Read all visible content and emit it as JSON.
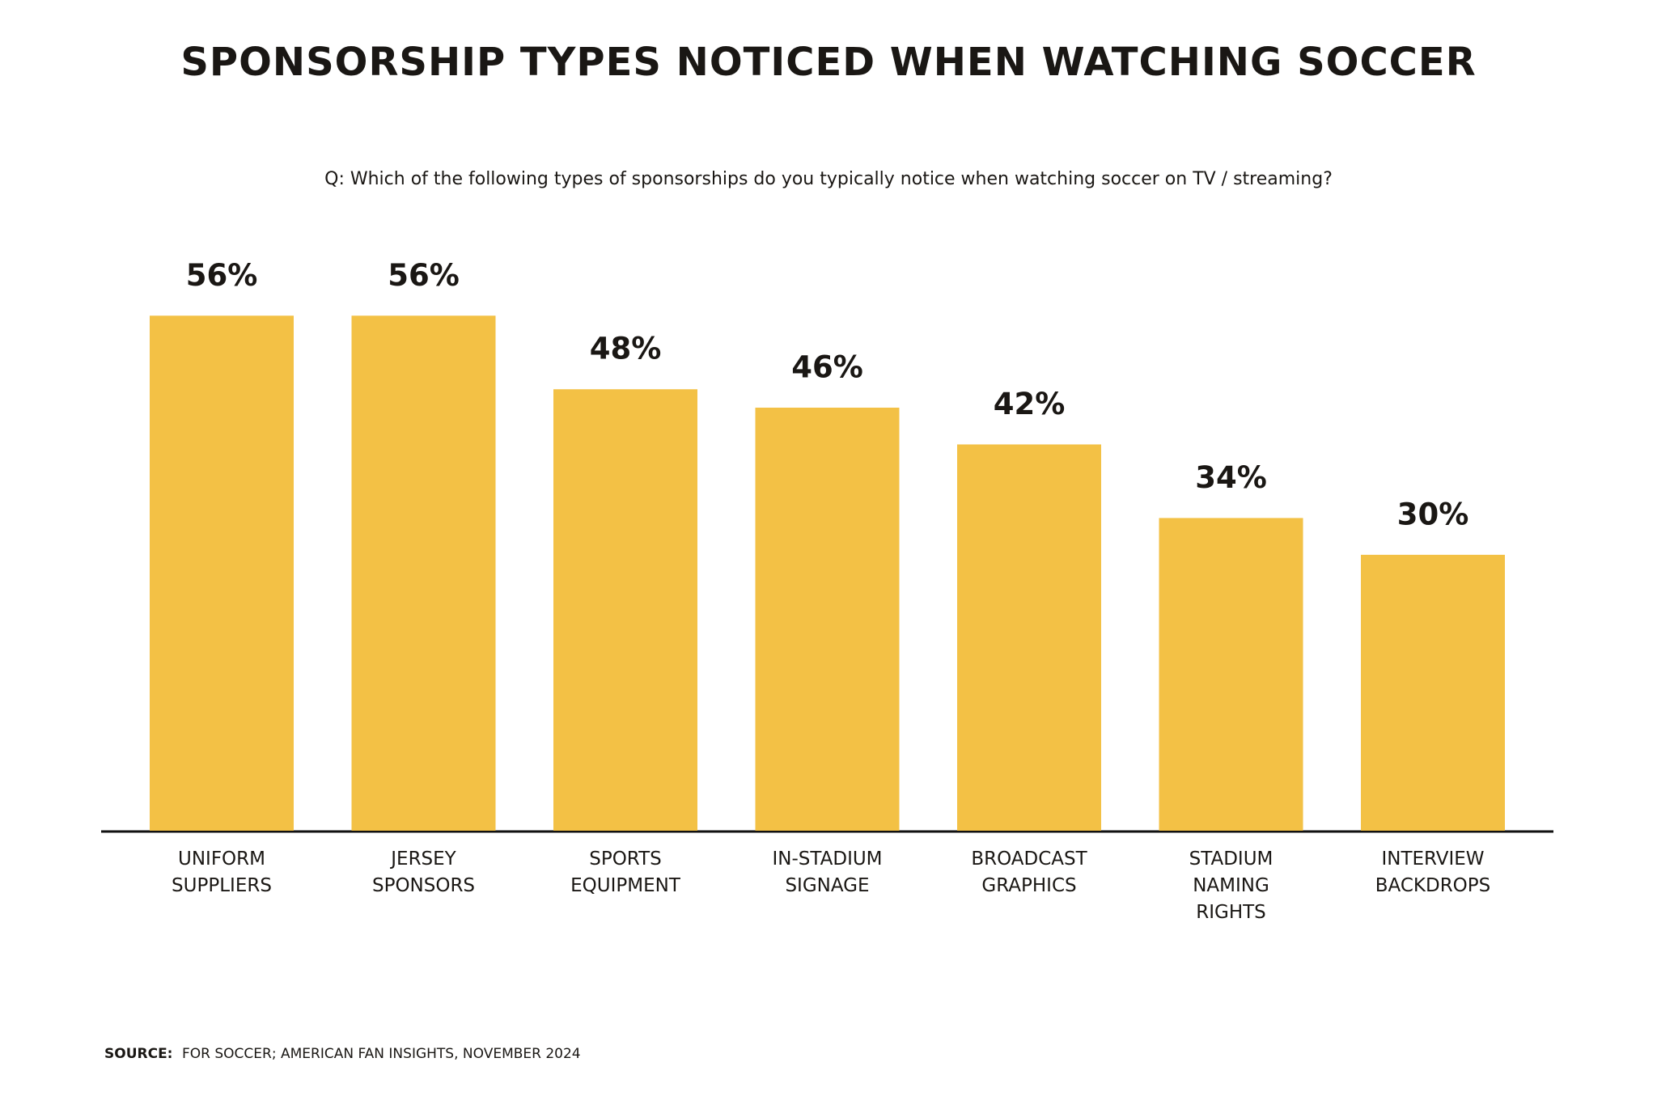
{
  "chart_data": {
    "type": "bar",
    "title": "SPONSORSHIP TYPES NOTICED WHEN WATCHING SOCCER",
    "subtitle": "Q: Which of the following types of sponsorships do you typically notice when watching soccer on TV / streaming?",
    "categories": [
      "UNIFORM SUPPLIERS",
      "JERSEY SPONSORS",
      "SPORTS EQUIPMENT",
      "IN-STADIUM SIGNAGE",
      "BROADCAST GRAPHICS",
      "STADIUM NAMING RIGHTS",
      "INTERVIEW BACKDROPS"
    ],
    "values": [
      56,
      56,
      48,
      46,
      42,
      34,
      30
    ],
    "value_labels": [
      "56%",
      "56%",
      "48%",
      "46%",
      "42%",
      "34%",
      "30%"
    ],
    "color": "#f3c145",
    "source_label": "SOURCE:",
    "source": "FOR SOCCER; AMERICAN FAN INSIGHTS, NOVEMBER 2024"
  }
}
